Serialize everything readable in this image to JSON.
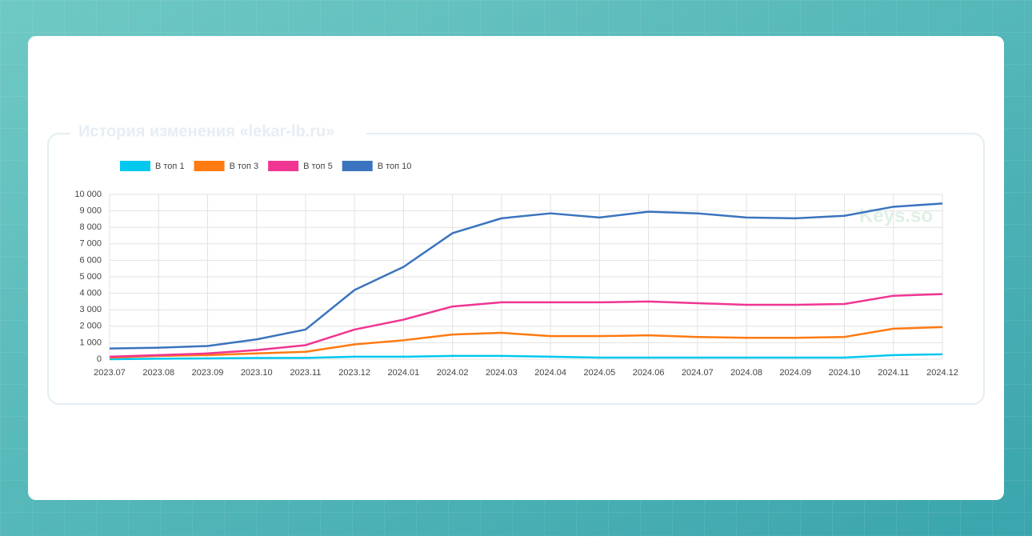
{
  "chart_data": {
    "type": "line",
    "title": "История изменения «lekar-lb.ru»",
    "watermark": "Keys.so",
    "categories": [
      "2023.07",
      "2023.08",
      "2023.09",
      "2023.10",
      "2023.11",
      "2023.12",
      "2024.01",
      "2024.02",
      "2024.03",
      "2024.04",
      "2024.05",
      "2024.06",
      "2024.07",
      "2024.08",
      "2024.09",
      "2024.10",
      "2024.11",
      "2024.12"
    ],
    "series": [
      {
        "name": "В топ 1",
        "color": "#00c8ef",
        "values": [
          0,
          30,
          50,
          70,
          80,
          150,
          150,
          200,
          200,
          150,
          100,
          100,
          100,
          100,
          100,
          100,
          250,
          300
        ]
      },
      {
        "name": "В топ 3",
        "color": "#ff7a11",
        "values": [
          100,
          200,
          250,
          350,
          450,
          900,
          1150,
          1500,
          1600,
          1400,
          1400,
          1450,
          1350,
          1300,
          1300,
          1350,
          1850,
          1950
        ]
      },
      {
        "name": "В топ 5",
        "color": "#f03592",
        "values": [
          150,
          250,
          350,
          550,
          850,
          1800,
          2400,
          3200,
          3450,
          3450,
          3450,
          3500,
          3400,
          3300,
          3300,
          3350,
          3850,
          3950
        ]
      },
      {
        "name": "В топ 10",
        "color": "#3a74be",
        "values": [
          650,
          700,
          800,
          1200,
          1800,
          4200,
          5600,
          7650,
          8550,
          8850,
          8600,
          8950,
          8850,
          8600,
          8550,
          8700,
          9250,
          9450
        ]
      }
    ],
    "ylim": [
      0,
      10000
    ],
    "yticks": [
      0,
      {
        "value": 1000,
        "label": "1 000"
      },
      {
        "value": 2000,
        "label": "2 000"
      },
      {
        "value": 3000,
        "label": "3 000"
      },
      {
        "value": 4000,
        "label": "4 000"
      },
      {
        "value": 5000,
        "label": "5 000"
      },
      {
        "value": 6000,
        "label": "6 000"
      },
      {
        "value": 7000,
        "label": "7 000"
      },
      {
        "value": 8000,
        "label": "8 000"
      },
      {
        "value": 9000,
        "label": "9 000"
      },
      {
        "value": 10000,
        "label": "10 000"
      }
    ],
    "grid": true
  }
}
